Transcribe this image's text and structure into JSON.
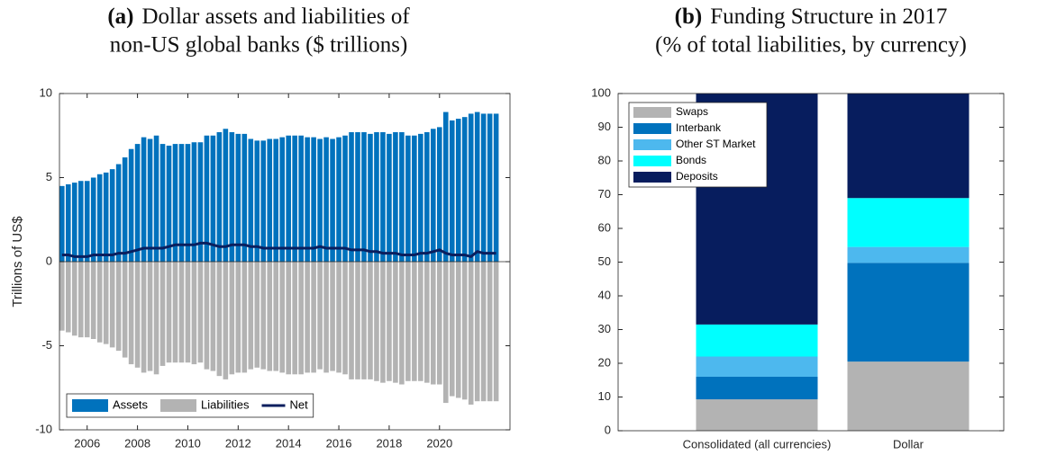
{
  "chart_data": [
    {
      "type": "bar",
      "title_label": "(a)",
      "title": [
        "Dollar assets and liabilities of",
        "non-US global banks ($ trillions)"
      ],
      "ylabel": "Trillions of US$",
      "x": [
        2005,
        2005.25,
        2005.5,
        2005.75,
        2006,
        2006.25,
        2006.5,
        2006.75,
        2007,
        2007.25,
        2007.5,
        2007.75,
        2008,
        2008.25,
        2008.5,
        2008.75,
        2009,
        2009.25,
        2009.5,
        2009.75,
        2010,
        2010.25,
        2010.5,
        2010.75,
        2011,
        2011.25,
        2011.5,
        2011.75,
        2012,
        2012.25,
        2012.5,
        2012.75,
        2013,
        2013.25,
        2013.5,
        2013.75,
        2014,
        2014.25,
        2014.5,
        2014.75,
        2015,
        2015.25,
        2015.5,
        2015.75,
        2016,
        2016.25,
        2016.5,
        2016.75,
        2017,
        2017.25,
        2017.5,
        2017.75,
        2018,
        2018.25,
        2018.5,
        2018.75,
        2019,
        2019.25,
        2019.5,
        2019.75,
        2020,
        2020.25,
        2020.5,
        2020.75,
        2021,
        2021.25,
        2021.5,
        2021.75,
        2022,
        2022.25
      ],
      "series": [
        {
          "name": "Assets",
          "color": "#0072bd",
          "values": [
            4.5,
            4.6,
            4.7,
            4.8,
            4.8,
            5.0,
            5.2,
            5.3,
            5.5,
            5.8,
            6.2,
            6.7,
            7.0,
            7.4,
            7.3,
            7.5,
            7.0,
            6.9,
            7.0,
            7.0,
            7.0,
            7.1,
            7.1,
            7.5,
            7.5,
            7.7,
            7.9,
            7.7,
            7.6,
            7.6,
            7.3,
            7.2,
            7.2,
            7.3,
            7.3,
            7.4,
            7.5,
            7.5,
            7.5,
            7.4,
            7.4,
            7.3,
            7.4,
            7.3,
            7.4,
            7.5,
            7.7,
            7.7,
            7.7,
            7.6,
            7.7,
            7.7,
            7.6,
            7.7,
            7.7,
            7.5,
            7.5,
            7.6,
            7.7,
            7.9,
            8.0,
            8.9,
            8.4,
            8.5,
            8.6,
            8.8,
            8.9,
            8.8,
            8.8,
            8.8
          ]
        },
        {
          "name": "Liabilities",
          "color": "#b3b3b3",
          "values": [
            -4.1,
            -4.2,
            -4.4,
            -4.5,
            -4.5,
            -4.6,
            -4.8,
            -4.9,
            -5.1,
            -5.3,
            -5.7,
            -6.1,
            -6.3,
            -6.6,
            -6.5,
            -6.7,
            -6.2,
            -6.0,
            -6.0,
            -6.0,
            -6.0,
            -6.1,
            -6.0,
            -6.4,
            -6.5,
            -6.8,
            -7.0,
            -6.7,
            -6.6,
            -6.6,
            -6.4,
            -6.3,
            -6.4,
            -6.5,
            -6.5,
            -6.6,
            -6.7,
            -6.7,
            -6.7,
            -6.6,
            -6.6,
            -6.4,
            -6.6,
            -6.5,
            -6.6,
            -6.7,
            -7.0,
            -7.0,
            -7.0,
            -7.0,
            -7.1,
            -7.2,
            -7.1,
            -7.2,
            -7.3,
            -7.1,
            -7.1,
            -7.1,
            -7.2,
            -7.3,
            -7.3,
            -8.4,
            -8.0,
            -8.1,
            -8.2,
            -8.5,
            -8.3,
            -8.3,
            -8.3,
            -8.3
          ]
        },
        {
          "name": "Net",
          "type": "line",
          "color": "#0b1f5e",
          "values": [
            0.4,
            0.4,
            0.3,
            0.3,
            0.3,
            0.4,
            0.4,
            0.4,
            0.4,
            0.5,
            0.5,
            0.6,
            0.7,
            0.8,
            0.8,
            0.8,
            0.8,
            0.9,
            1.0,
            1.0,
            1.0,
            1.0,
            1.1,
            1.1,
            1.0,
            0.9,
            0.9,
            1.0,
            1.0,
            1.0,
            0.9,
            0.9,
            0.8,
            0.8,
            0.8,
            0.8,
            0.8,
            0.8,
            0.8,
            0.8,
            0.8,
            0.9,
            0.8,
            0.8,
            0.8,
            0.8,
            0.7,
            0.7,
            0.7,
            0.6,
            0.6,
            0.5,
            0.5,
            0.5,
            0.4,
            0.4,
            0.4,
            0.5,
            0.5,
            0.6,
            0.7,
            0.5,
            0.4,
            0.4,
            0.4,
            0.3,
            0.6,
            0.5,
            0.5,
            0.5
          ]
        }
      ],
      "xlim": [
        2004.9,
        2022.8
      ],
      "xticks": [
        2006,
        2008,
        2010,
        2012,
        2014,
        2016,
        2018,
        2020
      ],
      "ylim": [
        -10,
        10
      ],
      "yticks": [
        -10,
        -5,
        0,
        5,
        10
      ],
      "legend": "lower left"
    },
    {
      "type": "stacked_bar",
      "title_label": "(b)",
      "title": [
        "Funding Structure in 2017",
        "(% of total liabilities, by currency)"
      ],
      "categories": [
        "Consolidated (all currencies)",
        "Dollar"
      ],
      "series": [
        {
          "name": "Swaps",
          "color": "#b3b3b3",
          "values": [
            9.3,
            20.5
          ]
        },
        {
          "name": "Interbank",
          "color": "#0072bd",
          "values": [
            6.7,
            29.3
          ]
        },
        {
          "name": "Other ST Market",
          "color": "#4db8ee",
          "values": [
            6,
            4.7
          ]
        },
        {
          "name": "Bonds",
          "color": "#00ffff",
          "values": [
            9.5,
            14.5
          ]
        },
        {
          "name": "Deposits",
          "color": "#071d5e",
          "values": [
            68.5,
            31
          ]
        }
      ],
      "ylim": [
        0,
        100
      ],
      "yticks": [
        0,
        10,
        20,
        30,
        40,
        50,
        60,
        70,
        80,
        90,
        100
      ],
      "legend": "upper left"
    }
  ]
}
